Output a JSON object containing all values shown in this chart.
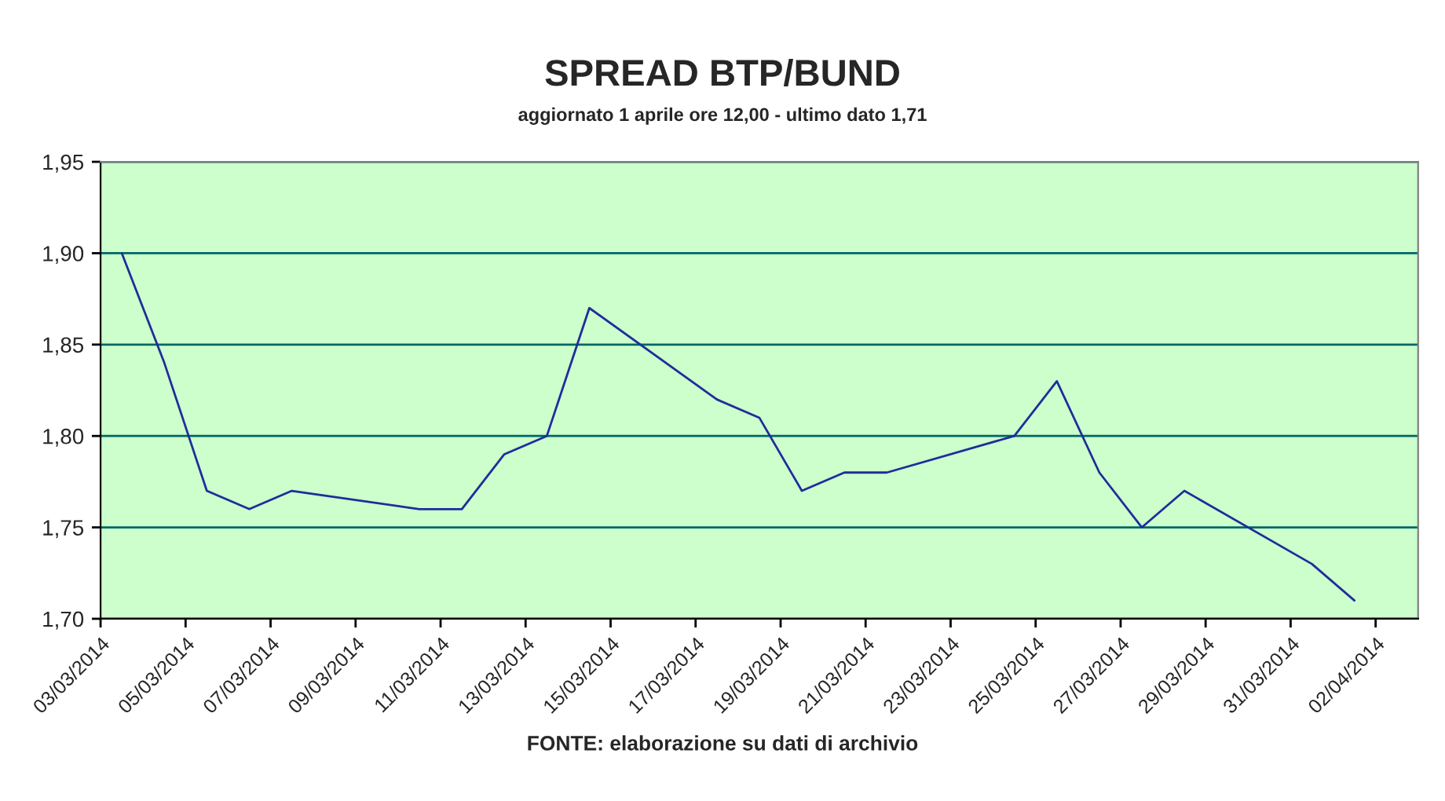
{
  "chart_data": {
    "type": "line",
    "title": "SPREAD BTP/BUND",
    "subtitle": "aggiornato 1 aprile ore 12,00 - ultimo dato 1,71",
    "annotations": [
      "FONTE: elaborazione su dati di archivio"
    ],
    "x": [
      "2014-03-03T12:00",
      "2014-03-04T12:00",
      "2014-03-05T12:00",
      "2014-03-06T12:00",
      "2014-03-07T12:00",
      "2014-03-10T12:00",
      "2014-03-11T12:00",
      "2014-03-12T12:00",
      "2014-03-13T12:00",
      "2014-03-14T12:00",
      "2014-03-17T12:00",
      "2014-03-18T12:00",
      "2014-03-19T12:00",
      "2014-03-20T12:00",
      "2014-03-21T12:00",
      "2014-03-24T12:00",
      "2014-03-25T12:00",
      "2014-03-26T12:00",
      "2014-03-27T12:00",
      "2014-03-28T12:00",
      "2014-03-31T12:00",
      "2014-04-01T12:00"
    ],
    "series": [
      {
        "color": "#1f2d9a",
        "values": [
          1.9,
          1.84,
          1.77,
          1.76,
          1.77,
          1.76,
          1.76,
          1.79,
          1.8,
          1.87,
          1.82,
          1.81,
          1.77,
          1.78,
          1.78,
          1.8,
          1.83,
          1.78,
          1.75,
          1.77,
          1.73,
          1.71
        ]
      }
    ],
    "xlim": [
      "2014-03-03",
      "2014-04-03"
    ],
    "xticks": [
      {
        "value": "2014-03-03",
        "label": "03/03/2014"
      },
      {
        "value": "2014-03-05",
        "label": "05/03/2014"
      },
      {
        "value": "2014-03-07",
        "label": "07/03/2014"
      },
      {
        "value": "2014-03-09",
        "label": "09/03/2014"
      },
      {
        "value": "2014-03-11",
        "label": "11/03/2014"
      },
      {
        "value": "2014-03-13",
        "label": "13/03/2014"
      },
      {
        "value": "2014-03-15",
        "label": "15/03/2014"
      },
      {
        "value": "2014-03-17",
        "label": "17/03/2014"
      },
      {
        "value": "2014-03-19",
        "label": "19/03/2014"
      },
      {
        "value": "2014-03-21",
        "label": "21/03/2014"
      },
      {
        "value": "2014-03-23",
        "label": "23/03/2014"
      },
      {
        "value": "2014-03-25",
        "label": "25/03/2014"
      },
      {
        "value": "2014-03-27",
        "label": "27/03/2014"
      },
      {
        "value": "2014-03-29",
        "label": "29/03/2014"
      },
      {
        "value": "2014-03-31",
        "label": "31/03/2014"
      },
      {
        "value": "2014-04-02",
        "label": "02/04/2014"
      }
    ],
    "ylim": [
      1.7,
      1.95
    ],
    "yticks": [
      {
        "value": 1.7,
        "label": "1,70"
      },
      {
        "value": 1.75,
        "label": "1,75"
      },
      {
        "value": 1.8,
        "label": "1,80"
      },
      {
        "value": 1.85,
        "label": "1,85"
      },
      {
        "value": 1.9,
        "label": "1,90"
      },
      {
        "value": 1.95,
        "label": "1,95"
      }
    ],
    "grid": "y",
    "legend": false,
    "marker": "none",
    "line_style": "solid"
  }
}
